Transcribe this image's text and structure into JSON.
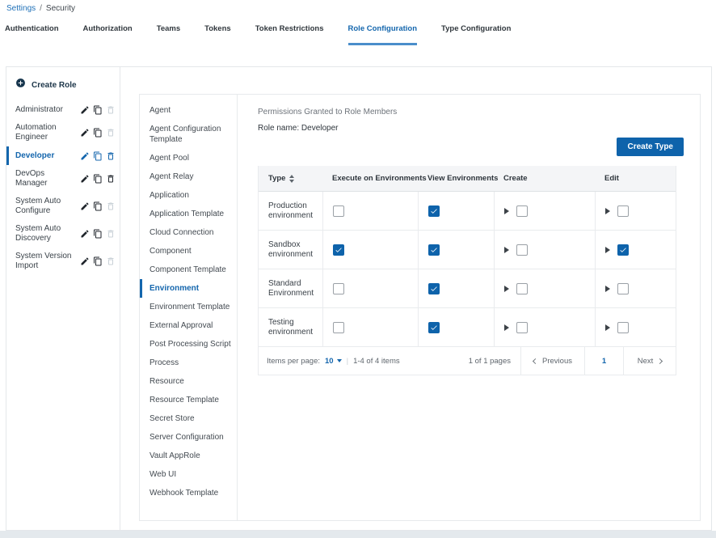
{
  "breadcrumb": {
    "link": "Settings",
    "separator": "/",
    "current": "Security"
  },
  "tabs": [
    {
      "label": "Authentication",
      "active": false
    },
    {
      "label": "Authorization",
      "active": false
    },
    {
      "label": "Teams",
      "active": false
    },
    {
      "label": "Tokens",
      "active": false
    },
    {
      "label": "Token Restrictions",
      "active": false
    },
    {
      "label": "Role Configuration",
      "active": true
    },
    {
      "label": "Type Configuration",
      "active": false
    }
  ],
  "sidebar": {
    "create_role_label": "Create Role",
    "create_role_icon": "plus-circle-icon",
    "row_icons": [
      "pencil-icon",
      "copy-icon",
      "trash-icon"
    ],
    "roles": [
      {
        "name": "Administrator",
        "selected": false,
        "can_delete": false
      },
      {
        "name": "Automation Engineer",
        "selected": false,
        "can_delete": false
      },
      {
        "name": "Developer",
        "selected": true,
        "can_delete": true
      },
      {
        "name": "DevOps Manager",
        "selected": false,
        "can_delete": true
      },
      {
        "name": "System Auto Configure",
        "selected": false,
        "can_delete": false
      },
      {
        "name": "System Auto Discovery",
        "selected": false,
        "can_delete": false
      },
      {
        "name": "System Version Import",
        "selected": false,
        "can_delete": false
      }
    ]
  },
  "types_list": {
    "items": [
      "Agent",
      "Agent Configuration Template",
      "Agent Pool",
      "Agent Relay",
      "Application",
      "Application Template",
      "Cloud Connection",
      "Component",
      "Component Template",
      "Environment",
      "Environment Template",
      "External Approval",
      "Post Processing Script",
      "Process",
      "Resource",
      "Resource Template",
      "Secret Store",
      "Server Configuration",
      "Vault AppRole",
      "Web UI",
      "Webhook Template"
    ],
    "selected": "Environment"
  },
  "permissions": {
    "title": "Permissions Granted to Role Members",
    "role_name_label": "Role name:",
    "role_name_value": "Developer",
    "create_type_label": "Create Type",
    "table": {
      "columns": [
        "Type",
        "Execute on Environments",
        "View Environments",
        "Create",
        "Edit"
      ],
      "sort_column": "Type",
      "rows": [
        {
          "type": "Production environment",
          "execute": false,
          "view": true,
          "create": false,
          "edit": false
        },
        {
          "type": "Sandbox environment",
          "execute": true,
          "view": true,
          "create": false,
          "edit": true
        },
        {
          "type": "Standard Environment",
          "execute": false,
          "view": true,
          "create": false,
          "edit": false
        },
        {
          "type": "Testing environment",
          "execute": false,
          "view": true,
          "create": false,
          "edit": false
        }
      ]
    },
    "pagination": {
      "items_per_page_label": "Items per page:",
      "items_per_page_value": "10",
      "divider": "|",
      "range_text": "1-4 of 4 items",
      "page_text": "1 of 1 pages",
      "previous_label": "Previous",
      "page_number": "1",
      "next_label": "Next"
    }
  },
  "colors": {
    "accent_blue": "#1466ad",
    "button_blue": "#0e63ab",
    "tab_underline": "#4a8ecb",
    "checked_checkbox": "#0e63ab",
    "disabled_icon": "#c9d1d7",
    "header_bg": "#f4f5f7",
    "border": "#e9ebee",
    "muted_text": "#6d737a"
  }
}
